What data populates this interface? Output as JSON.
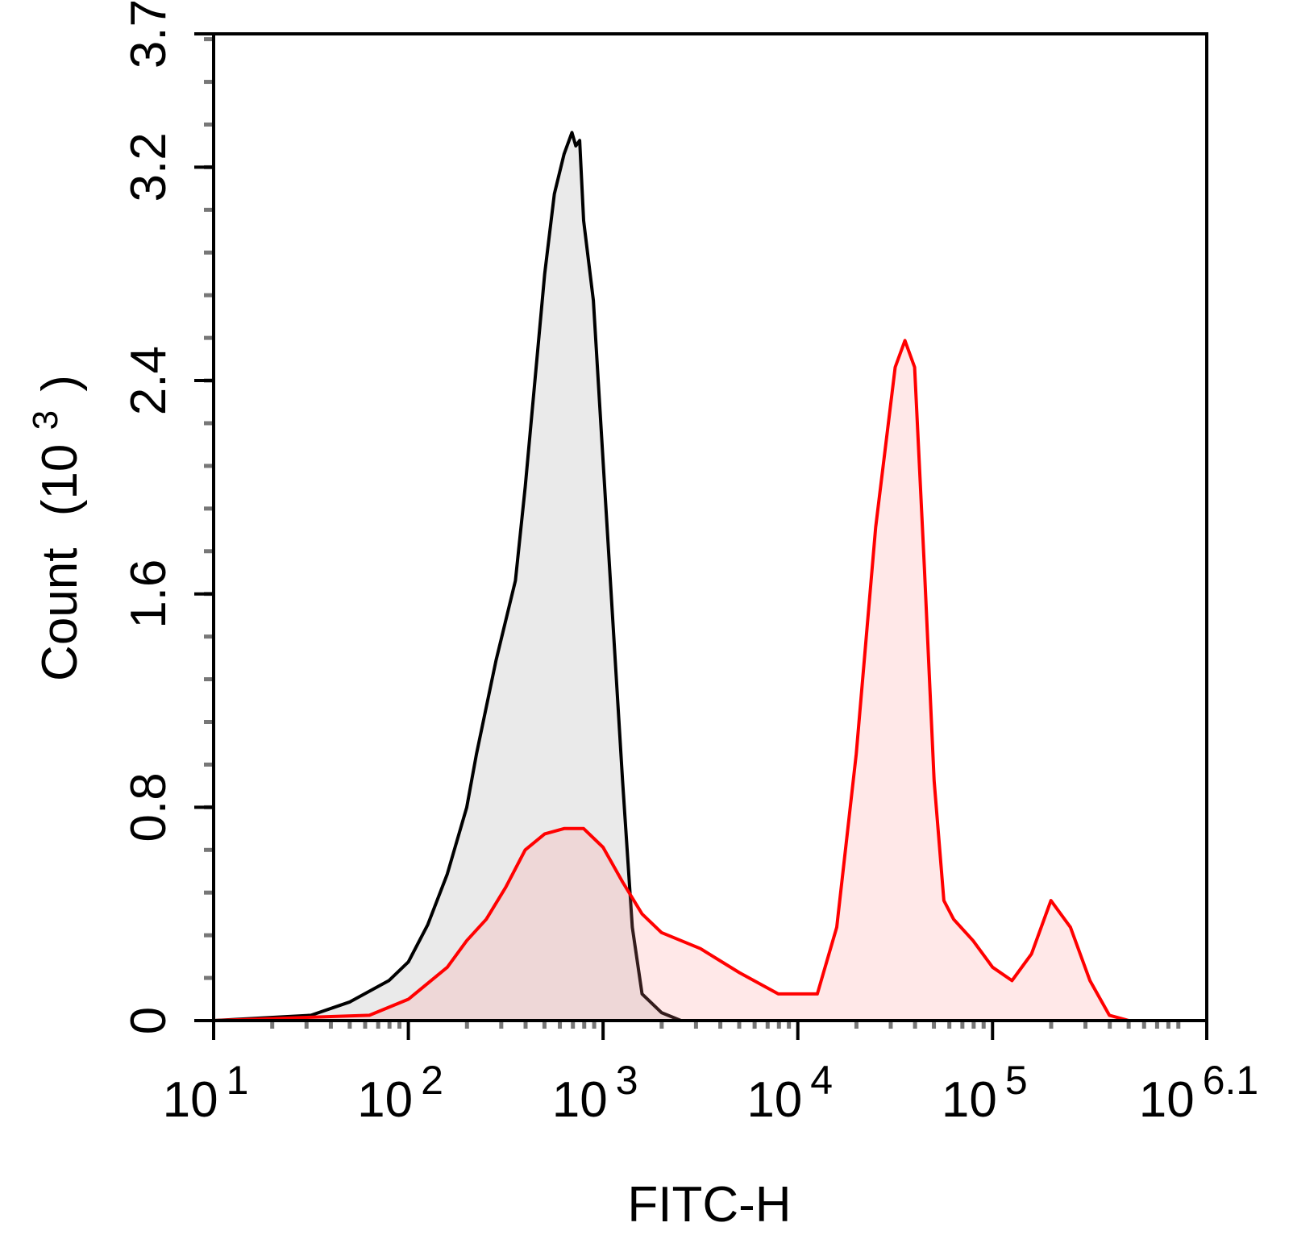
{
  "chart_data": {
    "type": "area",
    "xlabel": "FITC-H",
    "ylabel_main": "Count",
    "ylabel_unit_open": "(10",
    "ylabel_unit_exp": "3",
    "ylabel_unit_close": ")",
    "xscale": "log10",
    "xlim": [
      1,
      6.1
    ],
    "ylim": [
      0,
      3.7
    ],
    "x_ticks": [
      {
        "value": 1,
        "base": "10",
        "exp": "1"
      },
      {
        "value": 2,
        "base": "10",
        "exp": "2"
      },
      {
        "value": 3,
        "base": "10",
        "exp": "3"
      },
      {
        "value": 4,
        "base": "10",
        "exp": "4"
      },
      {
        "value": 5,
        "base": "10",
        "exp": "5"
      },
      {
        "value": 6.1,
        "base": "10",
        "exp": "6.1"
      }
    ],
    "y_ticks": [
      {
        "value": 0,
        "label": "0"
      },
      {
        "value": 0.8,
        "label": "0.8"
      },
      {
        "value": 1.6,
        "label": "1.6"
      },
      {
        "value": 2.4,
        "label": "2.4"
      },
      {
        "value": 3.2,
        "label": "3.2"
      },
      {
        "value": 3.7,
        "label": "3.7"
      }
    ],
    "grid": false,
    "legend": "none",
    "series": [
      {
        "color": "#000000",
        "fill": "#e8e8e8",
        "x": [
          1.0,
          1.5,
          1.7,
          1.9,
          2.0,
          2.1,
          2.2,
          2.3,
          2.35,
          2.45,
          2.55,
          2.6,
          2.65,
          2.7,
          2.75,
          2.8,
          2.84,
          2.86,
          2.88,
          2.9,
          2.95,
          3.0,
          3.05,
          3.1,
          3.15,
          3.2,
          3.3,
          3.4,
          4.0,
          6.1
        ],
        "y": [
          0.0,
          0.02,
          0.07,
          0.15,
          0.22,
          0.36,
          0.55,
          0.8,
          1.0,
          1.35,
          1.65,
          2.0,
          2.4,
          2.8,
          3.1,
          3.25,
          3.33,
          3.28,
          3.3,
          3.0,
          2.7,
          2.1,
          1.5,
          0.9,
          0.35,
          0.1,
          0.03,
          0.0,
          0.0,
          0.0
        ]
      },
      {
        "color": "#ff0000",
        "fill": "#ff8a8a",
        "x": [
          1.0,
          1.8,
          2.0,
          2.2,
          2.3,
          2.4,
          2.5,
          2.6,
          2.7,
          2.8,
          2.9,
          3.0,
          3.1,
          3.2,
          3.3,
          3.5,
          3.7,
          3.9,
          4.1,
          4.2,
          4.3,
          4.4,
          4.5,
          4.55,
          4.6,
          4.65,
          4.7,
          4.75,
          4.8,
          4.9,
          5.0,
          5.1,
          5.2,
          5.3,
          5.4,
          5.5,
          5.6,
          5.7,
          5.8,
          5.9,
          6.0,
          6.1
        ],
        "y": [
          0.0,
          0.02,
          0.08,
          0.2,
          0.3,
          0.38,
          0.5,
          0.64,
          0.7,
          0.72,
          0.72,
          0.65,
          0.52,
          0.4,
          0.33,
          0.27,
          0.18,
          0.1,
          0.1,
          0.35,
          1.0,
          1.85,
          2.45,
          2.55,
          2.45,
          1.7,
          0.9,
          0.45,
          0.38,
          0.3,
          0.2,
          0.15,
          0.25,
          0.45,
          0.35,
          0.15,
          0.02,
          0.0,
          0.0,
          0.0,
          0.0,
          0.0
        ]
      }
    ]
  }
}
